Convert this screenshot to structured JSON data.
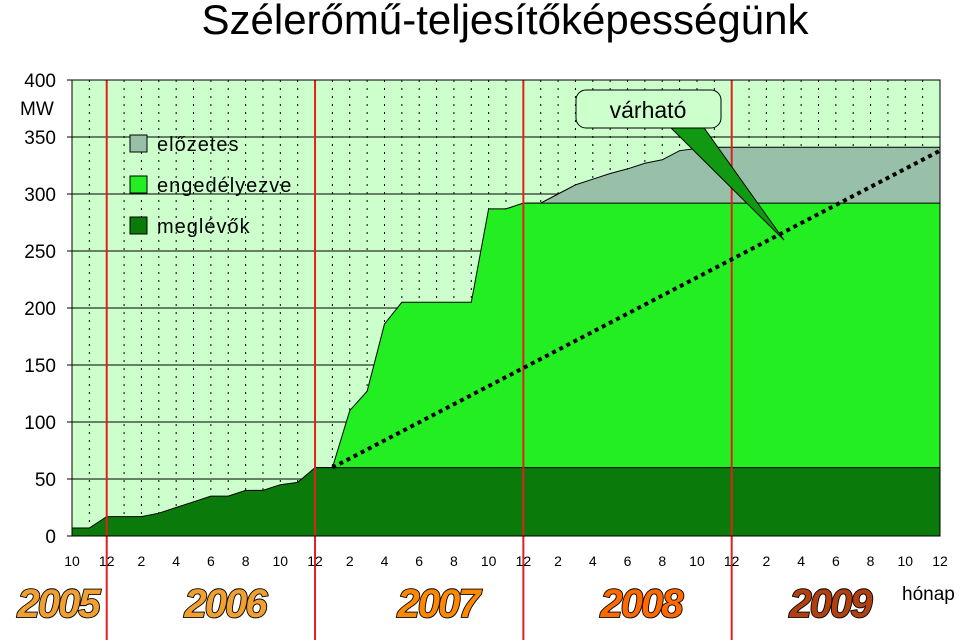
{
  "chart_data": {
    "type": "area",
    "title": "Szélerőmű-teljesítőképességünk",
    "ylabel": "MW",
    "xlabel": "hónap",
    "ylim": [
      0,
      400
    ],
    "yticks": [
      0,
      50,
      100,
      150,
      200,
      250,
      300,
      350,
      400
    ],
    "xlim": [
      10,
      60
    ],
    "x_tick_labels": [
      "10",
      "12",
      "2",
      "4",
      "6",
      "8",
      "10",
      "12",
      "2",
      "4",
      "6",
      "8",
      "10",
      "12",
      "2",
      "4",
      "6",
      "8",
      "10",
      "12",
      "2",
      "4",
      "6",
      "8",
      "10",
      "12"
    ],
    "years": [
      {
        "label": "2005",
        "color": "#f0a030"
      },
      {
        "label": "2006",
        "color": "#f0a030"
      },
      {
        "label": "2007",
        "color": "#ff8800"
      },
      {
        "label": "2008",
        "color": "#ff6a00"
      },
      {
        "label": "2009",
        "color": "#b04010"
      }
    ],
    "year_dividers": [
      12,
      24,
      36,
      48
    ],
    "series": [
      {
        "name": "meglévők",
        "color": "#0a7a0a",
        "points": [
          [
            10,
            7
          ],
          [
            11,
            7
          ],
          [
            12,
            17
          ],
          [
            13,
            17
          ],
          [
            14,
            17
          ],
          [
            15,
            20
          ],
          [
            16,
            25
          ],
          [
            17,
            30
          ],
          [
            18,
            35
          ],
          [
            19,
            35
          ],
          [
            20,
            40
          ],
          [
            21,
            40
          ],
          [
            22,
            45
          ],
          [
            23,
            47
          ],
          [
            24,
            60
          ],
          [
            25,
            60
          ],
          [
            60,
            60
          ]
        ]
      },
      {
        "name": "engedélyezve",
        "color": "#22ee22",
        "points": [
          [
            24,
            60
          ],
          [
            25,
            60
          ],
          [
            26,
            110
          ],
          [
            27,
            127
          ],
          [
            28,
            186
          ],
          [
            29,
            205
          ],
          [
            30,
            205
          ],
          [
            31,
            205
          ],
          [
            32,
            205
          ],
          [
            33,
            205
          ],
          [
            34,
            287
          ],
          [
            35,
            287
          ],
          [
            36,
            292
          ],
          [
            60,
            292
          ]
        ]
      },
      {
        "name": "előzetes",
        "color": "#98bfa8",
        "points": [
          [
            36,
            292
          ],
          [
            37,
            292
          ],
          [
            38,
            300
          ],
          [
            39,
            308
          ],
          [
            40,
            313
          ],
          [
            41,
            318
          ],
          [
            42,
            322
          ],
          [
            43,
            327
          ],
          [
            44,
            330
          ],
          [
            45,
            338
          ],
          [
            46,
            340
          ],
          [
            47,
            341
          ],
          [
            60,
            341
          ]
        ]
      }
    ],
    "trend": {
      "label": "várható",
      "points": [
        [
          25,
          60
        ],
        [
          60,
          338
        ]
      ]
    },
    "legend": [
      "előzetes",
      "engedélyezve",
      "meglévők"
    ],
    "legend_placement": "top-left",
    "grid": true,
    "plot_background": "#ccffcc"
  }
}
